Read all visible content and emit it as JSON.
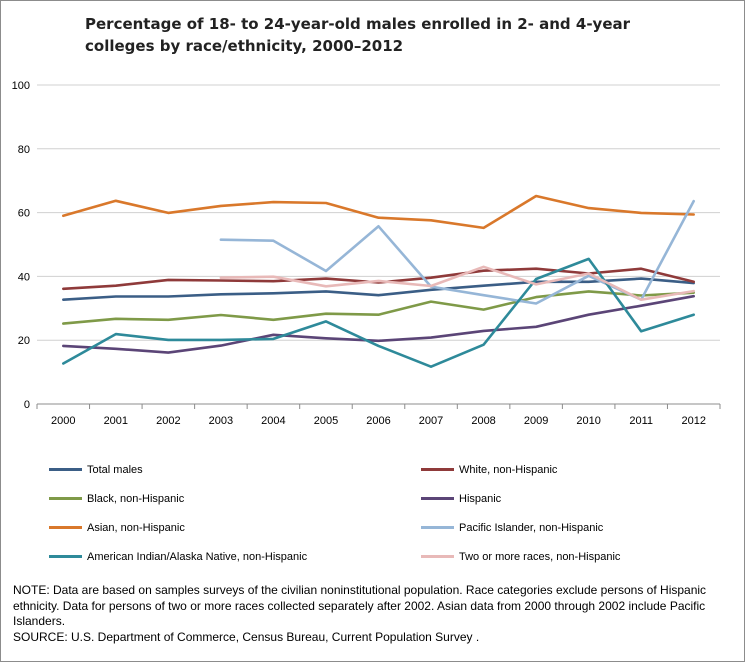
{
  "title": "Percentage of 18- to 24-year-old males enrolled in 2- and 4-year colleges by race/ethnicity, 2000–2012",
  "note": "NOTE: Data are based on samples surveys of the civilian noninstitutional population. Race categories exclude persons of Hispanic ethnicity. Data for persons of two or more races collected separately after 2002. Asian data from 2000  through 2002  include Pacific Islanders.",
  "source": "SOURCE: U.S. Department of Commerce, Census Bureau, Current Population Survey .",
  "chart_data": {
    "type": "line",
    "title": "Percentage of 18- to 24-year-old males enrolled in 2- and 4-year colleges by race/ethnicity, 2000–2012",
    "xlabel": "",
    "ylabel": "",
    "categories": [
      "2000",
      "2001",
      "2002",
      "2003",
      "2004",
      "2005",
      "2006",
      "2007",
      "2008",
      "2009",
      "2010",
      "2011",
      "2012"
    ],
    "ylim": [
      0,
      100
    ],
    "yticks": [
      0,
      20,
      40,
      60,
      80,
      100
    ],
    "grid": "horizontal",
    "legend": "bottom",
    "series": [
      {
        "name": "Total males",
        "color": "#3b5e86",
        "values": [
          32.7,
          33.7,
          33.7,
          34.4,
          34.7,
          35.3,
          34.1,
          35.8,
          37.1,
          38.3,
          38.3,
          39.3,
          37.9
        ]
      },
      {
        "name": "White, non-Hispanic",
        "color": "#8f3a3a",
        "values": [
          36.1,
          37.1,
          38.9,
          38.7,
          38.5,
          39.3,
          38.1,
          39.6,
          41.8,
          42.4,
          40.9,
          42.4,
          38.3
        ]
      },
      {
        "name": "Black, non-Hispanic",
        "color": "#7f9a48",
        "values": [
          25.2,
          26.7,
          26.4,
          27.9,
          26.4,
          28.3,
          28.0,
          32.1,
          29.6,
          33.5,
          35.3,
          34.0,
          34.9
        ]
      },
      {
        "name": "Hispanic",
        "color": "#5b4577",
        "values": [
          18.2,
          17.3,
          16.1,
          18.3,
          21.7,
          20.6,
          19.8,
          20.8,
          22.9,
          24.2,
          28.0,
          30.8,
          33.8
        ]
      },
      {
        "name": "Asian, non-Hispanic",
        "color": "#d9782b",
        "values": [
          59.0,
          63.7,
          59.9,
          62.1,
          63.3,
          63.0,
          58.4,
          57.6,
          55.2,
          65.2,
          61.4,
          59.9,
          59.4
        ]
      },
      {
        "name": "Pacific Islander, non-Hispanic",
        "color": "#96b6d7",
        "values": [
          null,
          null,
          null,
          51.5,
          51.2,
          41.7,
          55.7,
          36.8,
          34.1,
          31.5,
          40.2,
          32.7,
          63.6
        ]
      },
      {
        "name": "American Indian/Alaska Native, non-Hispanic",
        "color": "#2e8a9a",
        "values": [
          12.7,
          21.9,
          20.1,
          20.1,
          20.4,
          25.9,
          18.2,
          11.7,
          18.6,
          39.2,
          45.5,
          22.8,
          28.0
        ]
      },
      {
        "name": "Two or more races, non-Hispanic",
        "color": "#e8b9b8",
        "values": [
          null,
          null,
          null,
          39.6,
          39.9,
          36.9,
          38.6,
          37.0,
          43.0,
          37.5,
          40.9,
          32.7,
          35.4
        ]
      }
    ]
  }
}
